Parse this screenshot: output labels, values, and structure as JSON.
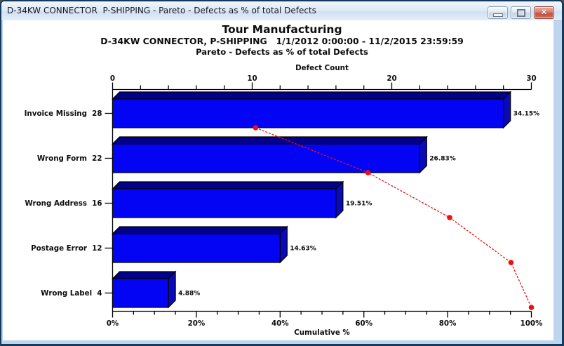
{
  "window": {
    "title": "D-34KW CONNECTOR  P-SHIPPING - Pareto - Defects as % of total Defects",
    "controls": {
      "minimize": "minimize",
      "restore": "restore",
      "close": "close",
      "close_glyph": "✕"
    }
  },
  "chart_data": {
    "type": "bar",
    "subtype": "pareto",
    "orientation": "horizontal",
    "title": "Tour Manufacturing",
    "subtitle": "D-34KW CONNECTOR, P-SHIPPING   1/1/2012 0:00:00 - 11/2/2015 23:59:59",
    "subtitle2": "Pareto - Defects as % of total Defects",
    "categories": [
      "Invoice Missing",
      "Wrong Form",
      "Wrong Address",
      "Postage Error",
      "Wrong Label"
    ],
    "values": [
      28,
      22,
      16,
      12,
      4
    ],
    "bar_pct_labels": [
      "34.15%",
      "26.83%",
      "19.51%",
      "14.63%",
      "4.88%"
    ],
    "series": [
      {
        "name": "Defect Count",
        "type": "bar",
        "values": [
          28,
          22,
          16,
          12,
          4
        ]
      },
      {
        "name": "Cumulative %",
        "type": "line",
        "values": [
          34.15,
          60.98,
          80.49,
          95.12,
          100
        ]
      }
    ],
    "cumulative_pct": [
      34.15,
      60.98,
      80.49,
      95.12,
      100
    ],
    "value_axis": {
      "label": "Defect Count",
      "position": "top",
      "range": [
        0,
        30
      ],
      "tick_labels": [
        "0",
        "10",
        "20",
        "30"
      ],
      "minor_step": 2
    },
    "cumulative_axis": {
      "label": "Cumulative %",
      "position": "bottom",
      "range": [
        0,
        100
      ],
      "tick_labels": [
        "0%",
        "20%",
        "40%",
        "60%",
        "80%",
        "100%"
      ],
      "minor_step": 5
    },
    "grid": false,
    "legend": "none",
    "colors": {
      "bar_front": "#0404f4",
      "bar_top_face": "#00008c",
      "bar_side_face": "#0a0ab8",
      "bar_outline": "#000000",
      "cumulative_line": "#ee0f0f",
      "window_border": "#bdd6ee"
    }
  }
}
